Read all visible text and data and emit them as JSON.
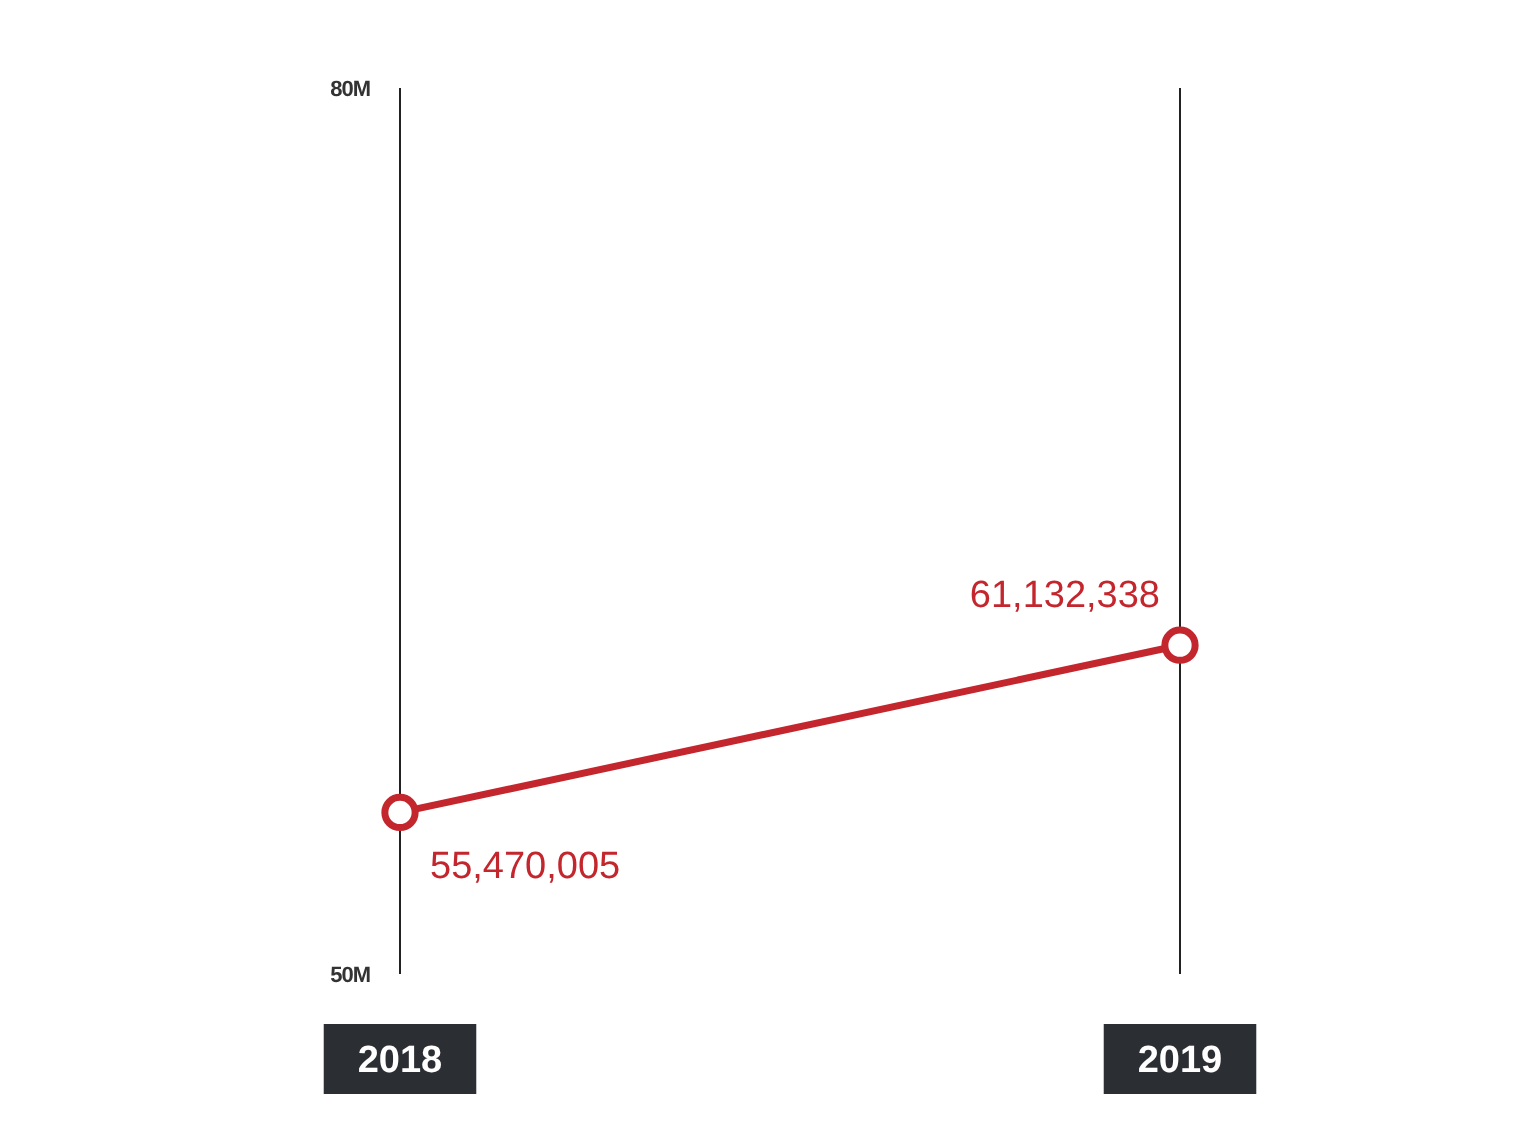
{
  "chart_data": {
    "type": "line",
    "categories": [
      "2018",
      "2019"
    ],
    "series": [
      {
        "color": "#c4262e",
        "values": [
          55470005,
          61132338
        ],
        "value_labels": [
          "55,470,005",
          "61,132,338"
        ]
      }
    ],
    "ylim": [
      50000000,
      80000000
    ],
    "yticks": [
      {
        "value": 50000000,
        "label": "50M"
      },
      {
        "value": 80000000,
        "label": "80M"
      }
    ],
    "grid": "x",
    "marker": "circle",
    "line_style": "solid"
  }
}
